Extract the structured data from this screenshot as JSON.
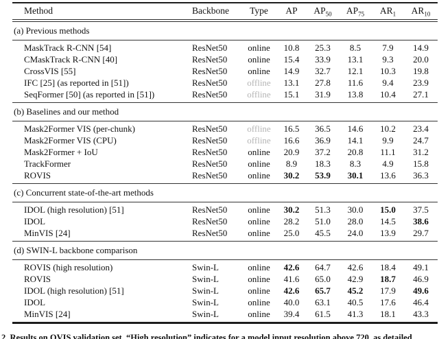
{
  "colors": {
    "text": "#111111",
    "rule": "#1c1c1c",
    "muted_type": "#b4b4b4"
  },
  "table": {
    "columns": [
      {
        "label": "Method",
        "sub": ""
      },
      {
        "label": "Backbone",
        "sub": ""
      },
      {
        "label": "Type",
        "sub": ""
      },
      {
        "label": "AP",
        "sub": ""
      },
      {
        "label": "AP",
        "sub": "50"
      },
      {
        "label": "AP",
        "sub": "75"
      },
      {
        "label": "AR",
        "sub": "1"
      },
      {
        "label": "AR",
        "sub": "10"
      }
    ],
    "muted_type_value": "offline",
    "sections": [
      {
        "title": "(a) Previous methods",
        "rows": [
          {
            "method": "MaskTrack R-CNN [54]",
            "backbone": "ResNet50",
            "type": "online",
            "values": [
              "10.8",
              "25.3",
              "8.5",
              "7.9",
              "14.9"
            ],
            "bold": []
          },
          {
            "method": "CMaskTrack R-CNN [40]",
            "backbone": "ResNet50",
            "type": "online",
            "values": [
              "15.4",
              "33.9",
              "13.1",
              "9.3",
              "20.0"
            ],
            "bold": []
          },
          {
            "method": "CrossVIS [55]",
            "backbone": "ResNet50",
            "type": "online",
            "values": [
              "14.9",
              "32.7",
              "12.1",
              "10.3",
              "19.8"
            ],
            "bold": []
          },
          {
            "method": "IFC [25] (as reported in [51])",
            "backbone": "ResNet50",
            "type": "offline",
            "values": [
              "13.1",
              "27.8",
              "11.6",
              "9.4",
              "23.9"
            ],
            "bold": []
          },
          {
            "method": "SeqFormer [50] (as reported in [51])",
            "backbone": "ResNet50",
            "type": "offline",
            "values": [
              "15.1",
              "31.9",
              "13.8",
              "10.4",
              "27.1"
            ],
            "bold": []
          }
        ]
      },
      {
        "title": "(b) Baselines and our method",
        "rows": [
          {
            "method": "Mask2Former VIS (per-chunk)",
            "backbone": "ResNet50",
            "type": "offline",
            "values": [
              "16.5",
              "36.5",
              "14.6",
              "10.2",
              "23.4"
            ],
            "bold": []
          },
          {
            "method": "Mask2Former VIS (CPU)",
            "backbone": "ResNet50",
            "type": "offline",
            "values": [
              "16.6",
              "36.9",
              "14.1",
              "9.9",
              "24.7"
            ],
            "bold": []
          },
          {
            "method": "Mask2Former + IoU",
            "backbone": "ResNet50",
            "type": "online",
            "values": [
              "20.9",
              "37.2",
              "20.8",
              "11.1",
              "31.2"
            ],
            "bold": []
          },
          {
            "method": "TrackFormer",
            "backbone": "ResNet50",
            "type": "online",
            "values": [
              "8.9",
              "18.3",
              "8.3",
              "4.9",
              "15.8"
            ],
            "bold": []
          },
          {
            "method": "ROVIS",
            "backbone": "ResNet50",
            "type": "online",
            "values": [
              "30.2",
              "53.9",
              "30.1",
              "13.6",
              "36.3"
            ],
            "bold": [
              0,
              1,
              2
            ]
          }
        ]
      },
      {
        "title": "(c) Concurrent state-of-the-art methods",
        "rows": [
          {
            "method": "IDOL (high resolution) [51]",
            "backbone": "ResNet50",
            "type": "online",
            "values": [
              "30.2",
              "51.3",
              "30.0",
              "15.0",
              "37.5"
            ],
            "bold": [
              0,
              3
            ]
          },
          {
            "method": "IDOL",
            "backbone": "ResNet50",
            "type": "online",
            "values": [
              "28.2",
              "51.0",
              "28.0",
              "14.5",
              "38.6"
            ],
            "bold": [
              4
            ]
          },
          {
            "method": "MinVIS [24]",
            "backbone": "ResNet50",
            "type": "online",
            "values": [
              "25.0",
              "45.5",
              "24.0",
              "13.9",
              "29.7"
            ],
            "bold": []
          }
        ]
      },
      {
        "title": "(d) SWIN-L backbone comparison",
        "rows": [
          {
            "method": "ROVIS (high resolution)",
            "backbone": "Swin-L",
            "type": "online",
            "values": [
              "42.6",
              "64.7",
              "42.6",
              "18.4",
              "49.1"
            ],
            "bold": [
              0
            ]
          },
          {
            "method": "ROVIS",
            "backbone": "Swin-L",
            "type": "online",
            "values": [
              "41.6",
              "65.0",
              "42.9",
              "18.7",
              "46.9"
            ],
            "bold": [
              3
            ]
          },
          {
            "method": "IDOL (high resolution) [51]",
            "backbone": "Swin-L",
            "type": "online",
            "values": [
              "42.6",
              "65.7",
              "45.2",
              "17.9",
              "49.6"
            ],
            "bold": [
              0,
              1,
              2,
              4
            ]
          },
          {
            "method": "IDOL",
            "backbone": "Swin-L",
            "type": "online",
            "values": [
              "40.0",
              "63.1",
              "40.5",
              "17.6",
              "46.4"
            ],
            "bold": []
          },
          {
            "method": "MinVIS [24]",
            "backbone": "Swin-L",
            "type": "online",
            "values": [
              "39.4",
              "61.5",
              "41.3",
              "18.1",
              "43.3"
            ],
            "bold": []
          }
        ]
      }
    ]
  },
  "caption": {
    "text": "2. Results on OVIS validation set. “High resolution” indicates for a model input resolution above 720, as detailed"
  }
}
